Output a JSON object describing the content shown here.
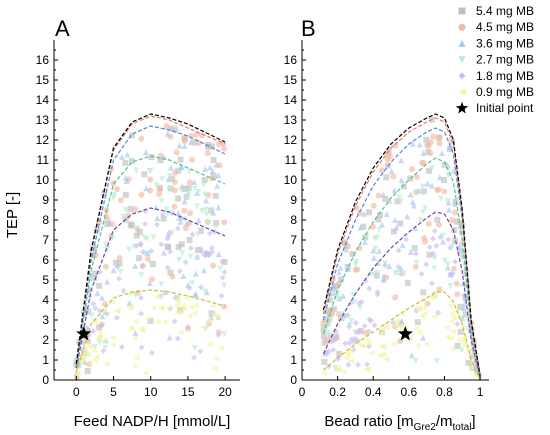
{
  "chart_data": [
    {
      "type": "scatter",
      "panel_label": "A",
      "xlabel": "Feed NADP/H [mmol/L]",
      "ylabel": "TEP [-]",
      "xlim": [
        -3,
        22
      ],
      "ylim": [
        0,
        17
      ],
      "xticks": [
        0,
        5,
        10,
        15,
        20
      ],
      "yticks": [
        0,
        1,
        2,
        3,
        4,
        5,
        6,
        7,
        8,
        9,
        10,
        11,
        12,
        13,
        14,
        15,
        16
      ],
      "series": [
        {
          "name": "5.4 mg MB",
          "max_curve": [
            [
              0,
              0.8
            ],
            [
              2,
              6.5
            ],
            [
              5,
              11.6
            ],
            [
              7.5,
              12.9
            ],
            [
              10,
              13.3
            ],
            [
              12.5,
              13.1
            ],
            [
              15,
              12.8
            ],
            [
              20,
              11.9
            ]
          ]
        },
        {
          "name": "4.5 mg MB",
          "max_curve": [
            [
              0,
              0.8
            ],
            [
              2,
              6.4
            ],
            [
              5,
              11.5
            ],
            [
              7.5,
              12.8
            ],
            [
              10,
              13.2
            ],
            [
              12.5,
              13.0
            ],
            [
              15,
              12.6
            ],
            [
              20,
              11.8
            ]
          ]
        },
        {
          "name": "3.6 mg MB",
          "max_curve": [
            [
              0,
              0.8
            ],
            [
              2,
              6.0
            ],
            [
              5,
              11.0
            ],
            [
              7.5,
              12.3
            ],
            [
              10,
              12.7
            ],
            [
              12.5,
              12.5
            ],
            [
              15,
              12.2
            ],
            [
              20,
              11.3
            ]
          ]
        },
        {
          "name": "2.7 mg MB",
          "max_curve": [
            [
              0,
              0.7
            ],
            [
              2,
              5.5
            ],
            [
              5,
              9.8
            ],
            [
              7.5,
              10.9
            ],
            [
              10,
              11.2
            ],
            [
              12.5,
              11.0
            ],
            [
              15,
              10.6
            ],
            [
              20,
              9.8
            ]
          ]
        },
        {
          "name": "1.8 mg MB",
          "max_curve": [
            [
              0,
              0.6
            ],
            [
              2,
              4.5
            ],
            [
              5,
              7.5
            ],
            [
              7.5,
              8.3
            ],
            [
              10,
              8.6
            ],
            [
              12.5,
              8.4
            ],
            [
              15,
              8.0
            ],
            [
              20,
              7.2
            ]
          ]
        },
        {
          "name": "0.9 mg MB",
          "max_curve": [
            [
              0,
              0.4
            ],
            [
              2,
              2.8
            ],
            [
              5,
              4.1
            ],
            [
              7.5,
              4.4
            ],
            [
              10,
              4.5
            ],
            [
              12.5,
              4.4
            ],
            [
              15,
              4.2
            ],
            [
              20,
              3.7
            ]
          ]
        }
      ],
      "initial_point": {
        "x": 1,
        "y": 2.3
      }
    },
    {
      "type": "scatter",
      "panel_label": "B",
      "xlabel": "Bead ratio [m",
      "xlabel_sub1": "Gre2",
      "xlabel_mid": "/m",
      "xlabel_sub2": "total",
      "xlabel_end": "]",
      "xlim": [
        0,
        1.05
      ],
      "ylim": [
        0,
        17
      ],
      "xticks": [
        0,
        0.2,
        0.4,
        0.6,
        0.8,
        1
      ],
      "xtick_labels": [
        "0",
        "0.2",
        "0.4",
        "0.6",
        "0.8",
        "1"
      ],
      "yticks": [
        0,
        1,
        2,
        3,
        4,
        5,
        6,
        7,
        8,
        9,
        10,
        11,
        12,
        13,
        14,
        15,
        16
      ],
      "series": [
        {
          "name": "5.4 mg MB",
          "max_curve": [
            [
              0.12,
              3.5
            ],
            [
              0.2,
              6.5
            ],
            [
              0.3,
              8.9
            ],
            [
              0.4,
              10.6
            ],
            [
              0.5,
              11.8
            ],
            [
              0.6,
              12.6
            ],
            [
              0.7,
              13.1
            ],
            [
              0.75,
              13.3
            ],
            [
              0.8,
              13.1
            ],
            [
              0.85,
              12.0
            ],
            [
              0.9,
              8.5
            ],
            [
              0.95,
              3.0
            ],
            [
              1.0,
              0.2
            ]
          ]
        },
        {
          "name": "4.5 mg MB",
          "max_curve": [
            [
              0.12,
              3.3
            ],
            [
              0.2,
              6.3
            ],
            [
              0.3,
              8.7
            ],
            [
              0.4,
              10.4
            ],
            [
              0.5,
              11.6
            ],
            [
              0.6,
              12.4
            ],
            [
              0.7,
              12.9
            ],
            [
              0.75,
              13.1
            ],
            [
              0.8,
              12.9
            ],
            [
              0.85,
              11.8
            ],
            [
              0.9,
              8.3
            ],
            [
              0.95,
              2.9
            ],
            [
              1.0,
              0.2
            ]
          ]
        },
        {
          "name": "3.6 mg MB",
          "max_curve": [
            [
              0.12,
              3.0
            ],
            [
              0.2,
              5.8
            ],
            [
              0.3,
              8.0
            ],
            [
              0.4,
              9.7
            ],
            [
              0.5,
              10.9
            ],
            [
              0.6,
              11.8
            ],
            [
              0.7,
              12.4
            ],
            [
              0.75,
              12.6
            ],
            [
              0.8,
              12.4
            ],
            [
              0.85,
              11.3
            ],
            [
              0.9,
              8.0
            ],
            [
              0.95,
              2.8
            ],
            [
              1.0,
              0.2
            ]
          ]
        },
        {
          "name": "2.7 mg MB",
          "max_curve": [
            [
              0.12,
              2.3
            ],
            [
              0.2,
              4.5
            ],
            [
              0.3,
              6.4
            ],
            [
              0.4,
              7.9
            ],
            [
              0.5,
              9.1
            ],
            [
              0.6,
              10.0
            ],
            [
              0.7,
              10.8
            ],
            [
              0.75,
              11.1
            ],
            [
              0.8,
              10.9
            ],
            [
              0.85,
              9.9
            ],
            [
              0.9,
              7.0
            ],
            [
              0.95,
              2.5
            ],
            [
              1.0,
              0.1
            ]
          ]
        },
        {
          "name": "1.8 mg MB",
          "max_curve": [
            [
              0.12,
              1.3
            ],
            [
              0.2,
              2.8
            ],
            [
              0.3,
              4.3
            ],
            [
              0.4,
              5.6
            ],
            [
              0.5,
              6.6
            ],
            [
              0.6,
              7.4
            ],
            [
              0.7,
              8.1
            ],
            [
              0.75,
              8.4
            ],
            [
              0.8,
              8.3
            ],
            [
              0.85,
              7.5
            ],
            [
              0.9,
              5.4
            ],
            [
              0.95,
              2.0
            ],
            [
              1.0,
              0.1
            ]
          ]
        },
        {
          "name": "0.9 mg MB",
          "max_curve": [
            [
              0.12,
              0.5
            ],
            [
              0.2,
              1.1
            ],
            [
              0.3,
              1.8
            ],
            [
              0.4,
              2.4
            ],
            [
              0.5,
              3.0
            ],
            [
              0.6,
              3.6
            ],
            [
              0.7,
              4.1
            ],
            [
              0.75,
              4.4
            ],
            [
              0.8,
              4.4
            ],
            [
              0.85,
              3.9
            ],
            [
              0.9,
              2.8
            ],
            [
              0.95,
              1.0
            ],
            [
              1.0,
              0.0
            ]
          ]
        }
      ],
      "initial_point": {
        "x": 0.58,
        "y": 2.3
      }
    }
  ],
  "legend": {
    "placement": "top-right",
    "entries": [
      {
        "label": "5.4 mg MB",
        "color": "#c0c0c0",
        "marker": "square"
      },
      {
        "label": "4.5 mg MB",
        "color": "#f2b8a2",
        "marker": "circle"
      },
      {
        "label": "3.6 mg MB",
        "color": "#a9c6f0",
        "marker": "triangle-up"
      },
      {
        "label": "2.7 mg MB",
        "color": "#b5ecd2",
        "marker": "triangle-down"
      },
      {
        "label": "1.8 mg MB",
        "color": "#cabdf2",
        "marker": "diamond"
      },
      {
        "label": "0.9 mg MB",
        "color": "#f3f3a0",
        "marker": "triangle-left"
      },
      {
        "label": "Initial point",
        "color": "#000000",
        "marker": "star"
      }
    ]
  },
  "curve_colors": [
    "#000000",
    "#d9826a",
    "#5b86d6",
    "#52c48a",
    "#6a4aa8",
    "#c8c03a"
  ]
}
